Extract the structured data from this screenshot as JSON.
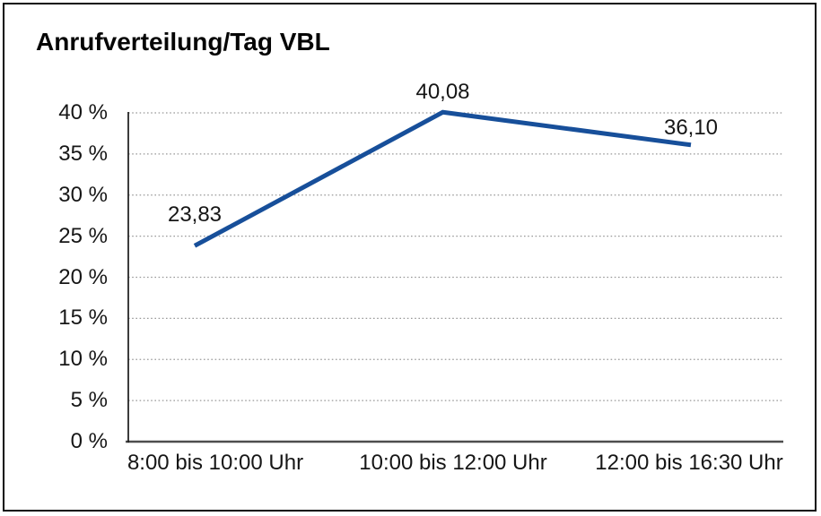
{
  "window": {
    "background_color": "#ffffff",
    "frame_border_color": "#0a0a0a"
  },
  "chart_data": {
    "type": "line",
    "title": "Anrufverteilung/Tag VBL",
    "categories": [
      "8:00 bis 10:00 Uhr",
      "10:00 bis 12:00 Uhr",
      "12:00 bis 16:30 Uhr"
    ],
    "values": [
      23.83,
      40.08,
      36.1
    ],
    "data_labels": [
      "23,83",
      "40,08",
      "36,10"
    ],
    "xlabel": "",
    "ylabel": "",
    "ylim": [
      0,
      40
    ],
    "yticks": [
      0,
      5,
      10,
      15,
      20,
      25,
      30,
      35,
      40
    ],
    "ytick_labels": [
      "0 %",
      "5 %",
      "10 %",
      "15 %",
      "20 %",
      "25 %",
      "30 %",
      "35 %",
      "40 %"
    ],
    "grid": "horizontal-dotted",
    "legend_position": "none",
    "line_color": "#174f9a",
    "grid_color": "#999999",
    "baseline_color": "#4d4d4d",
    "axis_color": "#1a1a1a",
    "text_color": "#161616"
  }
}
